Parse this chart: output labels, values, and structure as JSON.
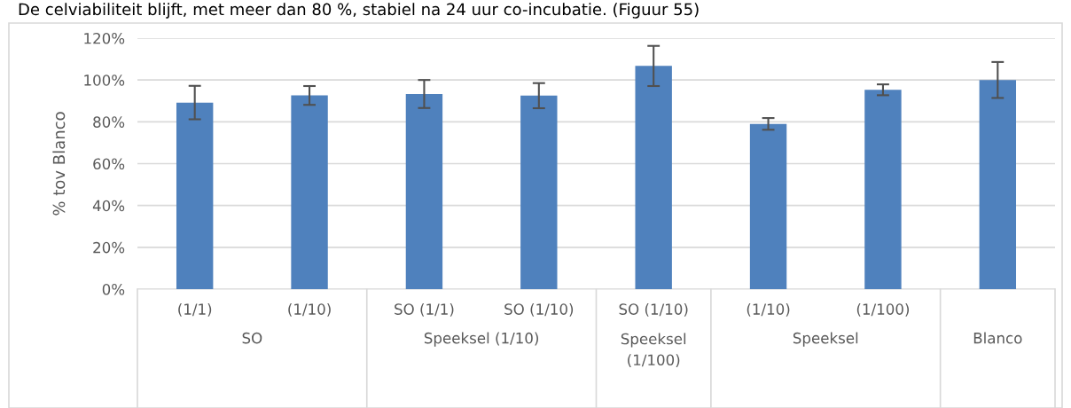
{
  "chart_data": {
    "type": "bar",
    "title": "De celviabiliteit blijft, met meer dan 80 %, stabiel na 24 uur co-incubatie. (Figuur 55)",
    "ylabel": "% tov Blanco",
    "categories": [
      "(1/1)",
      "(1/10)",
      "SO (1/1)",
      "SO (1/10)",
      "SO (1/10)",
      "(1/10)",
      "(1/100)",
      null
    ],
    "annotations": [
      "SO",
      "Speeksel (1/10)",
      "Speeksel\n(1/100)",
      "Speeksel",
      "Blanco"
    ],
    "values": [
      89.2,
      92.6,
      93.3,
      92.5,
      106.7,
      79.0,
      95.3,
      100
    ],
    "errors": [
      8,
      4.5,
      6.7,
      6,
      9.6,
      2.8,
      2.6,
      8.6
    ],
    "color": "#4f81bd",
    "ylim": [
      0,
      120
    ],
    "yticks": [
      {
        "value": 0,
        "label": "0%"
      },
      {
        "value": 20,
        "label": "20%"
      },
      {
        "value": 40,
        "label": "40%"
      },
      {
        "value": 60,
        "label": "60%"
      },
      {
        "value": 80,
        "label": "80%"
      },
      {
        "value": 100,
        "label": "100%"
      },
      {
        "value": 120,
        "label": "120%"
      }
    ],
    "grid": "y"
  }
}
